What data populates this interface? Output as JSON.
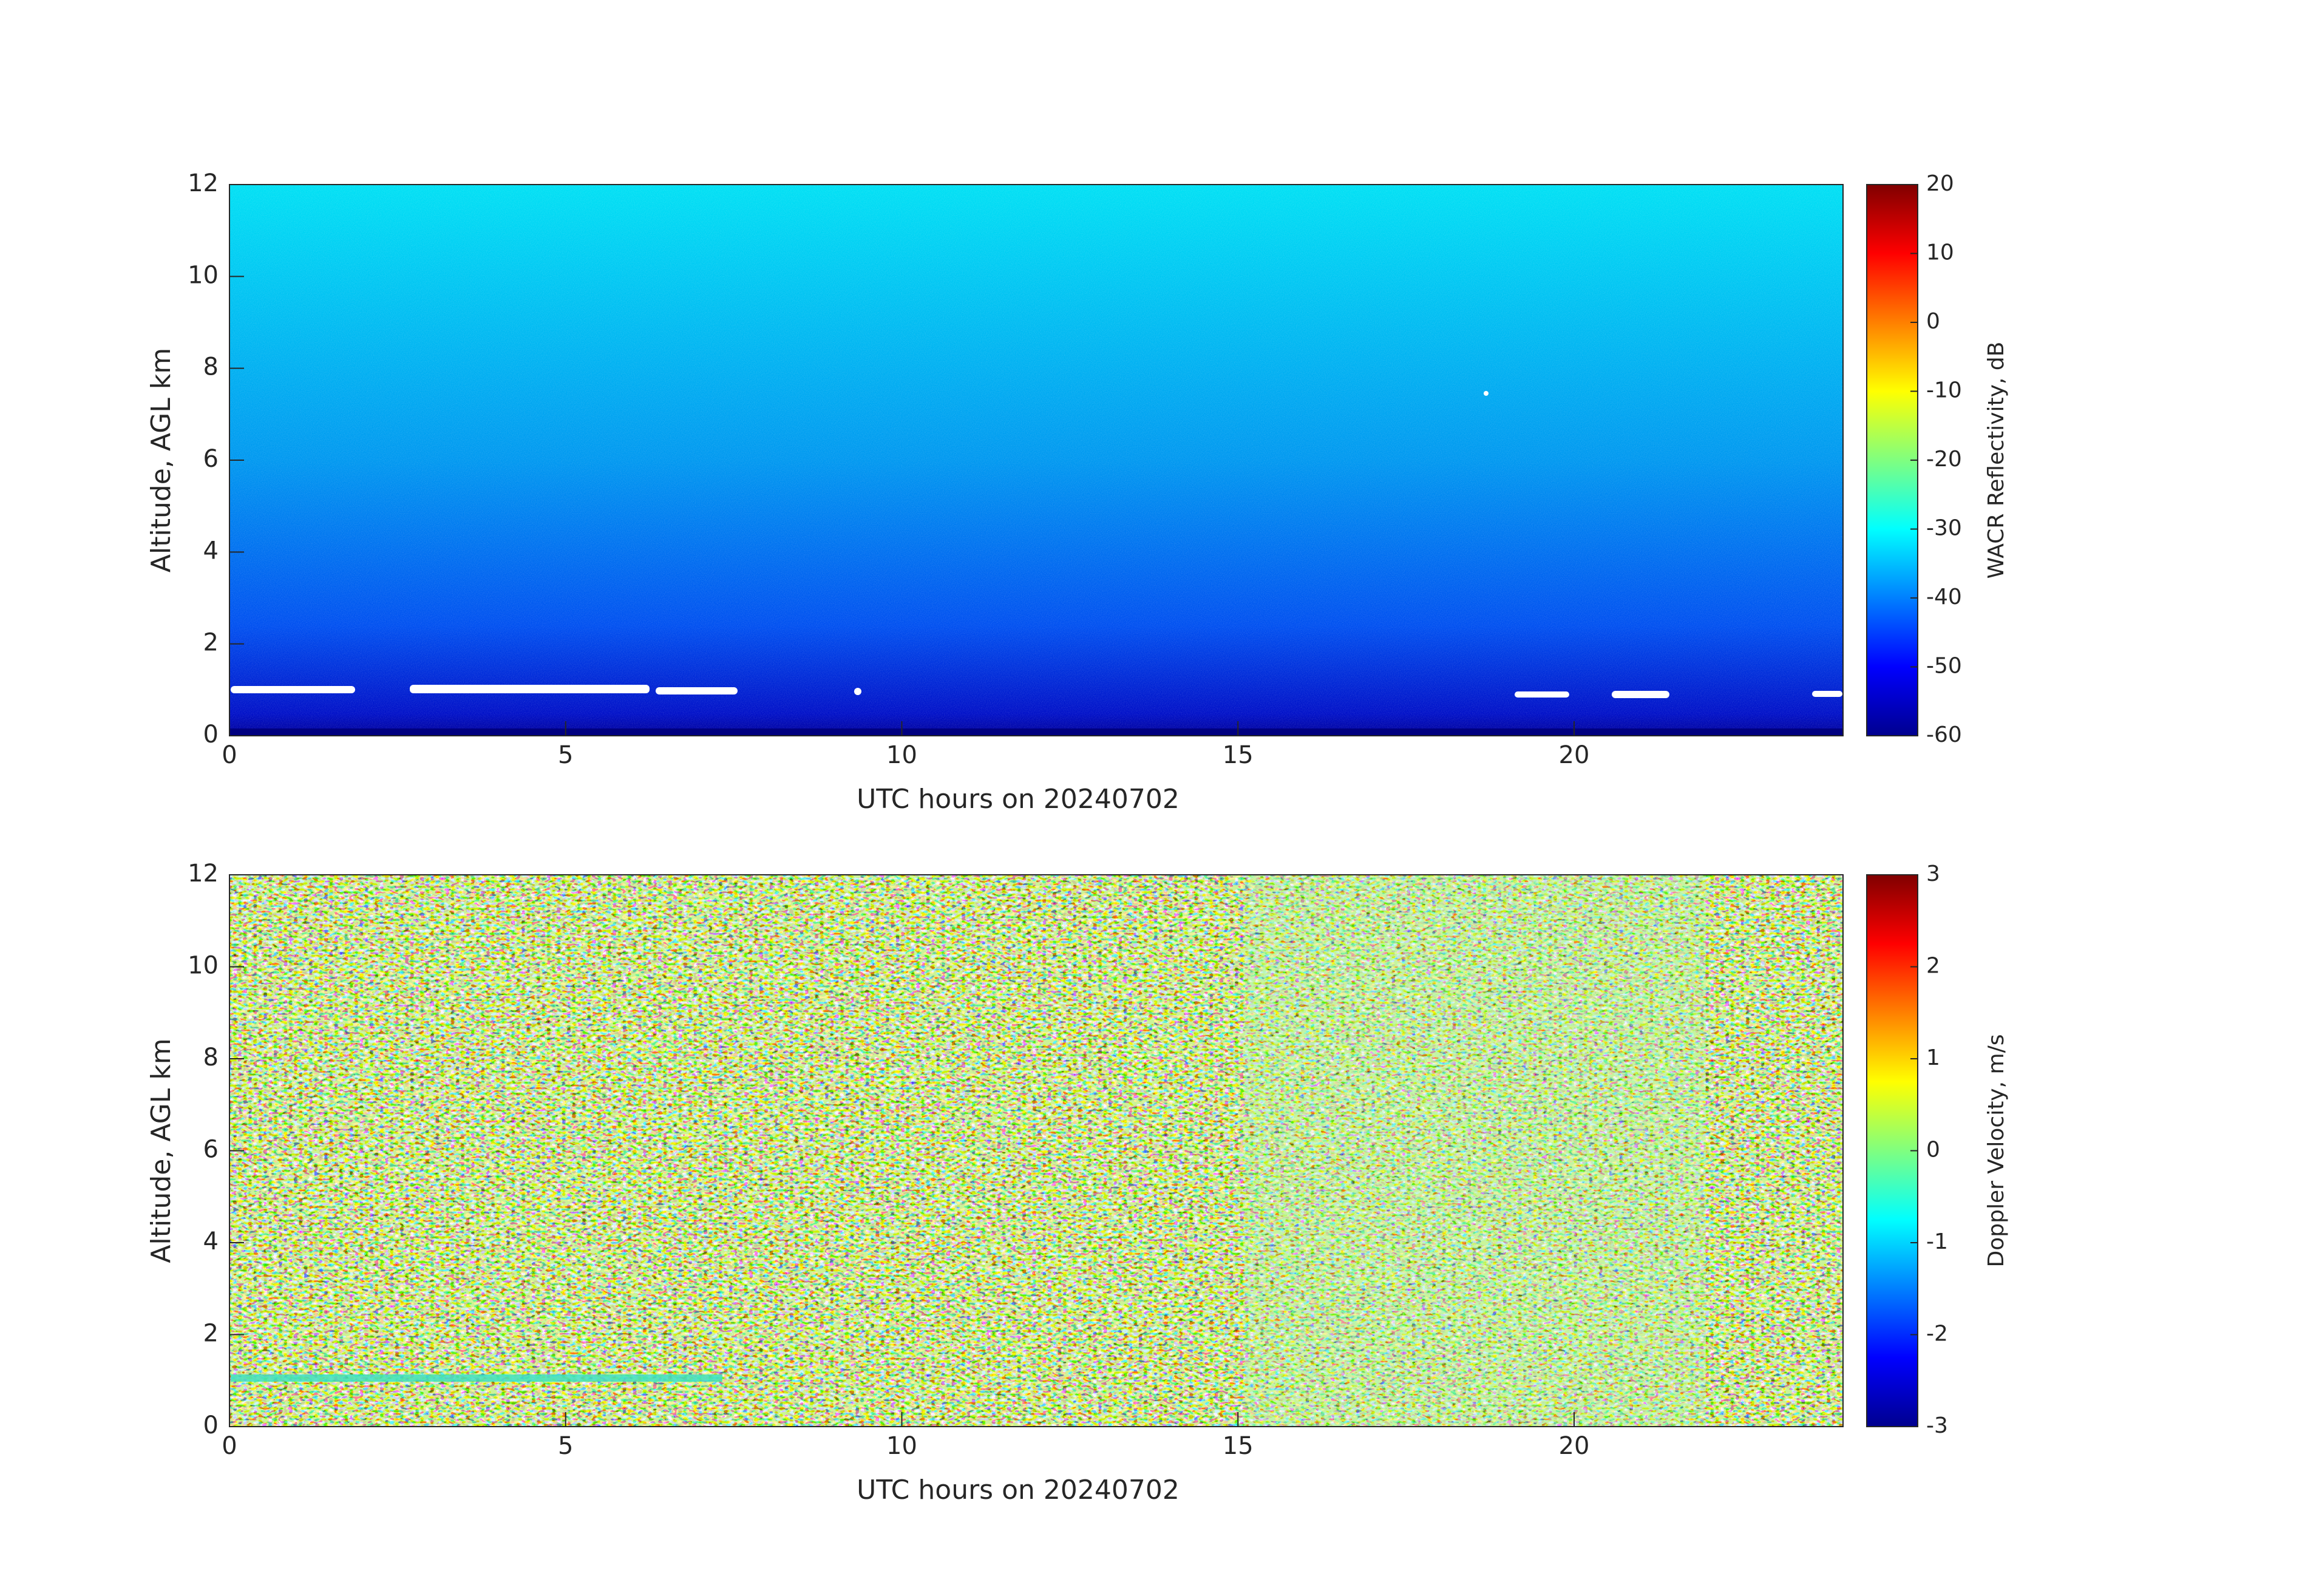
{
  "chart_data": [
    {
      "type": "heatmap",
      "xlabel": "UTC hours on 20240702",
      "ylabel": "Altitude, AGL km",
      "xlim": [
        0,
        24
      ],
      "xticks": [
        0,
        5,
        10,
        15,
        20
      ],
      "ylim": [
        0,
        12
      ],
      "yticks": [
        0,
        2,
        4,
        6,
        8,
        10,
        12
      ],
      "colorbar": {
        "label": "WACR Reflectivity, dB",
        "lim": [
          -60,
          20
        ],
        "ticks": [
          -60,
          -50,
          -40,
          -30,
          -20,
          -10,
          0,
          10,
          20
        ],
        "colormap": "jet"
      }
    },
    {
      "type": "heatmap",
      "xlabel": "UTC hours on 20240702",
      "ylabel": "Altitude, AGL km",
      "xlim": [
        0,
        24
      ],
      "xticks": [
        0,
        5,
        10,
        15,
        20
      ],
      "ylim": [
        0,
        12
      ],
      "yticks": [
        0,
        2,
        4,
        6,
        8,
        10,
        12
      ],
      "colorbar": {
        "label": "Doppler Velocity, m/s",
        "lim": [
          -3,
          3
        ],
        "ticks": [
          -3,
          -2,
          -1,
          0,
          1,
          2,
          3
        ],
        "colormap": "jet"
      }
    }
  ]
}
